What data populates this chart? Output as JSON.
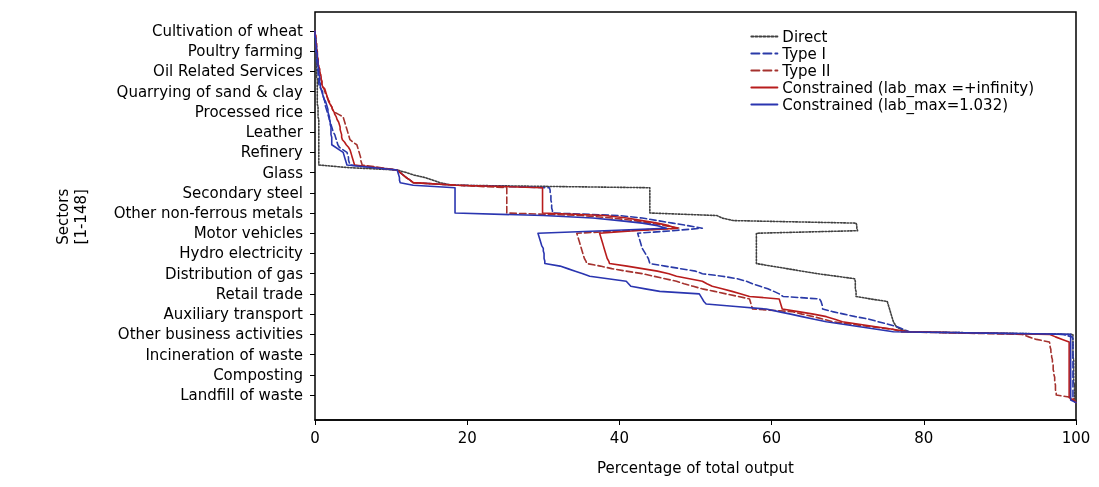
{
  "chart_data": {
    "type": "line",
    "orientation": "horizontal",
    "xlabel": "Percentage of total output",
    "ylabel": "Sectors\n[1-148]",
    "xlim": [
      0,
      100
    ],
    "xticks": [
      0,
      20,
      40,
      60,
      80,
      100
    ],
    "categories": [
      "Cultivation of wheat",
      null,
      null,
      null,
      null,
      null,
      null,
      null,
      "Poultry farming",
      null,
      null,
      null,
      null,
      null,
      null,
      null,
      "Oil Related Services",
      null,
      null,
      null,
      null,
      null,
      null,
      null,
      "Quarrying of sand & clay",
      null,
      null,
      null,
      null,
      null,
      null,
      null,
      "Processed rice",
      null,
      null,
      null,
      null,
      null,
      null,
      null,
      "Leather",
      null,
      null,
      null,
      null,
      null,
      null,
      null,
      "Refinery",
      null,
      null,
      null,
      null,
      null,
      null,
      null,
      "Glass",
      null,
      null,
      null,
      null,
      null,
      null,
      null,
      "Secondary steel",
      null,
      null,
      null,
      null,
      null,
      null,
      null,
      "Other non-ferrous metals",
      null,
      null,
      null,
      null,
      null,
      null,
      null,
      "Motor vehicles",
      null,
      null,
      null,
      null,
      null,
      null,
      null,
      "Hydro electricity",
      null,
      null,
      null,
      null,
      null,
      null,
      null,
      "Distribution of gas",
      null,
      null,
      null,
      null,
      null,
      null,
      null,
      "Retail trade",
      null,
      null,
      null,
      null,
      null,
      null,
      null,
      "Auxiliary transport",
      null,
      null,
      null,
      null,
      null,
      null,
      null,
      "Other business activities",
      null,
      null,
      null,
      null,
      null,
      null,
      null,
      "Incineration of waste",
      null,
      null,
      null,
      null,
      null,
      null,
      null,
      "Composting",
      null,
      null,
      null,
      null,
      null,
      null,
      null,
      "Landfill of waste",
      null,
      null,
      null
    ],
    "grid": false,
    "legend": "top right",
    "marker": "none",
    "series": [
      {
        "name": "Direct",
        "color": "#404040",
        "line_style": "dotted",
        "values": [
          0,
          0,
          0,
          0.1,
          0.1,
          0.1,
          0.1,
          0.1,
          0.1,
          0.2,
          0.2,
          0.2,
          0.2,
          0.2,
          0.2,
          0.2,
          0.2,
          0.2,
          0.2,
          0.3,
          0.3,
          0.3,
          0.3,
          0.3,
          0.3,
          0.3,
          0.3,
          0.3,
          0.3,
          0.3,
          0.4,
          0.4,
          0.4,
          0.4,
          0.4,
          0.5,
          0.5,
          0.5,
          0.5,
          0.5,
          0.5,
          0.5,
          0.5,
          0.5,
          0.5,
          0.5,
          0.5,
          0.5,
          0.5,
          0.5,
          0.5,
          0.5,
          0.5,
          0.5,
          4.2,
          10.8,
          12,
          13,
          14.5,
          15.5,
          16.4,
          18,
          44,
          44,
          44,
          44,
          44,
          44,
          44,
          44,
          44,
          44,
          44,
          52.8,
          53.5,
          55,
          71.1,
          71.2,
          71.2,
          71.3,
          58,
          58,
          58,
          58,
          58,
          58,
          58,
          58,
          58,
          58,
          58,
          58,
          58,
          60,
          62,
          64,
          66,
          68.5,
          70.9,
          71,
          71,
          71,
          71,
          71.1,
          71.1,
          71.1,
          73,
          75.2,
          75.3,
          75.4,
          75.5,
          75.6,
          75.7,
          75.8,
          75.9,
          76,
          76.2,
          76.4,
          77,
          78,
          99.6,
          99.6,
          99.6,
          99.6,
          99.6,
          99.6,
          99.6,
          99.6,
          99.6,
          99.6,
          99.7,
          99.7,
          99.7,
          99.7,
          99.7,
          99.7,
          99.7,
          99.7,
          99.7,
          99.7,
          99.8,
          99.8,
          99.8,
          99.8,
          99.8,
          99.8,
          99.8,
          100
        ]
      },
      {
        "name": "Type I",
        "color": "#2a3aa8",
        "line_style": "dashed",
        "values": [
          0,
          0,
          0,
          0,
          0.1,
          0.1,
          0.1,
          0.1,
          0.1,
          0.2,
          0.2,
          0.2,
          0.2,
          0.3,
          0.3,
          0.3,
          0.4,
          0.4,
          0.4,
          0.5,
          0.5,
          0.5,
          0.6,
          0.8,
          1,
          1,
          1.1,
          1.2,
          1.3,
          1.3,
          1.4,
          1.5,
          1.6,
          1.7,
          1.8,
          1.9,
          2,
          2.1,
          2.2,
          2.3,
          2.4,
          2.6,
          2.7,
          2.8,
          2.9,
          3,
          3.2,
          3.7,
          4.2,
          4.3,
          4.4,
          4.4,
          4.5,
          4.6,
          7.7,
          10.8,
          11.2,
          11.6,
          12,
          12.5,
          12.9,
          18.6,
          30.8,
          30.9,
          30.9,
          31,
          31,
          31,
          31.1,
          31.1,
          31.1,
          31.2,
          31.2,
          40,
          43,
          45,
          47,
          49,
          50.9,
          47,
          42.4,
          42.5,
          42.6,
          42.7,
          42.8,
          42.9,
          43,
          43.2,
          43.4,
          43.6,
          43.8,
          43.9,
          44,
          46,
          48,
          50,
          50.9,
          53.5,
          55.5,
          56.7,
          57.5,
          58.5,
          59.5,
          60.3,
          61,
          61.5,
          66.3,
          66.5,
          66.6,
          66.7,
          66.7,
          68,
          69.5,
          71,
          72.8,
          74,
          75.3,
          76.5,
          77.3,
          78.1,
          98.2,
          99.5,
          99.6,
          99.6,
          99.6,
          99.6,
          99.6,
          99.6,
          99.6,
          99.6,
          99.6,
          99.6,
          99.6,
          99.6,
          99.6,
          99.6,
          99.6,
          99.6,
          99.6,
          99.6,
          99.6,
          99.6,
          99.6,
          99.6,
          99.6,
          99.6,
          99.6,
          100
        ]
      },
      {
        "name": "Type II",
        "color": "#a5322e",
        "line_style": "dashed",
        "values": [
          0,
          0,
          0.1,
          0.1,
          0.1,
          0.2,
          0.2,
          0.2,
          0.3,
          0.3,
          0.3,
          0.4,
          0.4,
          0.4,
          0.5,
          0.6,
          0.6,
          0.7,
          0.8,
          0.8,
          0.9,
          0.9,
          1,
          1.2,
          1.3,
          1.4,
          1.6,
          1.7,
          1.9,
          2,
          2.2,
          2.3,
          2.5,
          3.1,
          3.7,
          3.8,
          3.9,
          4,
          4.1,
          4.2,
          4.3,
          4.4,
          4.5,
          4.6,
          5,
          5.5,
          5.6,
          5.7,
          5.8,
          5.9,
          6,
          6,
          6.1,
          6.2,
          8.5,
          10.8,
          11.2,
          11.6,
          12,
          12.5,
          12.9,
          18.6,
          25.2,
          25.2,
          25.2,
          25.2,
          25.2,
          25.2,
          25.2,
          25.2,
          25.2,
          25.2,
          25.2,
          35,
          39,
          42,
          44,
          46,
          47.9,
          41,
          34.4,
          34.5,
          34.6,
          34.7,
          34.8,
          34.9,
          35,
          35.1,
          35.2,
          35.3,
          35.4,
          35.6,
          35.7,
          37.5,
          39,
          40.9,
          43,
          44.5,
          46,
          47.5,
          48.5,
          49.7,
          50.9,
          52.5,
          54,
          55.6,
          57.1,
          57.2,
          57.3,
          57.4,
          57.5,
          62.7,
          64,
          65.5,
          66.8,
          68,
          70.5,
          73,
          75.9,
          77,
          92.9,
          93.8,
          94.8,
          96.5,
          96.6,
          96.6,
          96.7,
          96.7,
          96.8,
          96.8,
          96.9,
          96.9,
          97,
          97,
          97,
          97.1,
          97.1,
          97.2,
          97.2,
          97.2,
          97.3,
          97.3,
          97.3,
          97.4,
          97.4,
          99.5,
          99.8,
          100
        ]
      },
      {
        "name": "Constrained (lab_max =+infinity)",
        "color": "#b81c1c",
        "line_style": "solid",
        "values": [
          0,
          0,
          0.1,
          0.1,
          0.1,
          0.2,
          0.2,
          0.2,
          0.3,
          0.3,
          0.3,
          0.4,
          0.4,
          0.4,
          0.5,
          0.6,
          0.6,
          0.7,
          0.8,
          0.8,
          0.9,
          0.9,
          1,
          1.3,
          1.4,
          1.5,
          1.6,
          1.7,
          1.8,
          2,
          2.2,
          2.3,
          2.5,
          2.6,
          2.8,
          2.9,
          3.1,
          3.2,
          3.3,
          3.3,
          3.4,
          3.5,
          3.5,
          3.6,
          3.9,
          4.1,
          4.4,
          4.6,
          4.7,
          4.8,
          4.9,
          5,
          5.1,
          5.2,
          8,
          10.8,
          11.2,
          11.6,
          12,
          12.5,
          12.9,
          18.6,
          29.9,
          29.9,
          29.9,
          29.9,
          29.9,
          29.9,
          29.9,
          29.9,
          29.9,
          29.9,
          29.9,
          38,
          41,
          43,
          45,
          46.5,
          47.6,
          42,
          37.4,
          37.5,
          37.6,
          37.7,
          37.8,
          37.9,
          38,
          38.1,
          38.2,
          38.3,
          38.4,
          38.6,
          38.7,
          41,
          43,
          45,
          46.5,
          47.5,
          49.2,
          50.9,
          51.5,
          52.2,
          53.5,
          54.8,
          56,
          57.1,
          61,
          61.1,
          61.2,
          61.3,
          61.4,
          63.5,
          65.5,
          67.2,
          68.3,
          69.3,
          71.5,
          73.7,
          75.9,
          78,
          96.5,
          97.3,
          98.2,
          99.1,
          99.1,
          99.1,
          99.1,
          99.1,
          99.1,
          99.1,
          99.1,
          99.1,
          99.1,
          99.1,
          99.1,
          99.1,
          99.1,
          99.1,
          99.1,
          99.1,
          99.1,
          99.1,
          99.1,
          99.1,
          99.1,
          99.1,
          99.6,
          100
        ]
      },
      {
        "name": "Constrained (lab_max=1.032)",
        "color": "#2a35b0",
        "line_style": "solid",
        "values": [
          0,
          0,
          0,
          0.1,
          0.1,
          0.1,
          0.2,
          0.2,
          0.2,
          0.3,
          0.3,
          0.3,
          0.4,
          0.4,
          0.4,
          0.5,
          0.5,
          0.5,
          0.6,
          0.6,
          0.6,
          0.7,
          0.7,
          0.8,
          0.9,
          1,
          1.1,
          1.2,
          1.4,
          1.5,
          1.6,
          1.7,
          1.7,
          1.8,
          1.9,
          1.9,
          2,
          2,
          2.1,
          2.1,
          2.1,
          2.1,
          2.2,
          2.2,
          2.2,
          2.2,
          2.7,
          3.2,
          3.7,
          3.8,
          3.9,
          4,
          4.1,
          4.2,
          7.5,
          10.8,
          10.9,
          11,
          11.1,
          11.1,
          11.2,
          12.9,
          18.4,
          18.4,
          18.4,
          18.4,
          18.4,
          18.4,
          18.4,
          18.4,
          18.4,
          18.4,
          18.4,
          30,
          36.5,
          40,
          43,
          45,
          46.2,
          38,
          29.3,
          29.4,
          29.5,
          29.6,
          29.7,
          29.8,
          30,
          30,
          30.1,
          30.1,
          30.1,
          30.2,
          30.2,
          32.2,
          33.2,
          34.2,
          35.2,
          36.1,
          38.5,
          40.9,
          41.2,
          41.5,
          43.4,
          45.3,
          50.5,
          50.7,
          50.9,
          51.1,
          51.4,
          55.3,
          59.3,
          60.9,
          62.5,
          64,
          65.6,
          67.2,
          69.4,
          71.6,
          73.8,
          76,
          99.3,
          99.3,
          99.3,
          99.3,
          99.3,
          99.3,
          99.3,
          99.3,
          99.3,
          99.3,
          99.3,
          99.3,
          99.3,
          99.3,
          99.3,
          99.3,
          99.3,
          99.3,
          99.3,
          99.3,
          99.3,
          99.3,
          99.3,
          99.3,
          99.3,
          99.3,
          99.3,
          100
        ]
      }
    ]
  }
}
